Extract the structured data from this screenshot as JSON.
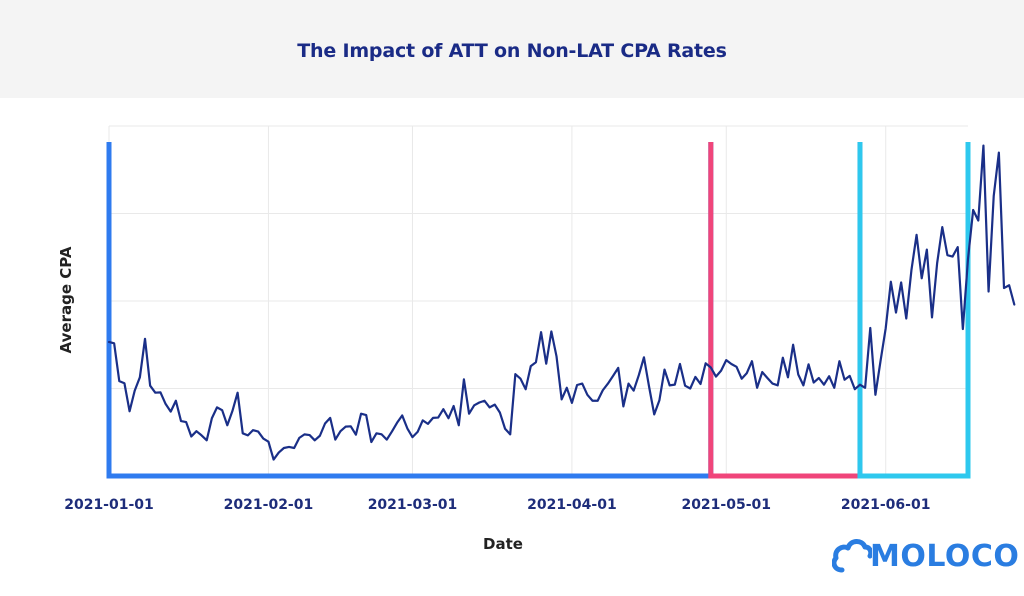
{
  "chart_data": {
    "type": "line",
    "title": "The Impact of ATT on Non-LAT CPA Rates",
    "xlabel": "Date",
    "ylabel": "Average CPA",
    "x_tick_labels": [
      "2021-01-01",
      "2021-02-01",
      "2021-03-01",
      "2021-04-01",
      "2021-05-01",
      "2021-06-01"
    ],
    "x_range_days": [
      0,
      167
    ],
    "ylim": [
      0,
      100
    ],
    "grid": true,
    "period_markers": [
      {
        "name": "before-att",
        "start_day": 0,
        "end_day": 117,
        "color": "#2f7bef"
      },
      {
        "name": "att-launch",
        "start_day": 117,
        "end_day": 146,
        "color": "#f0457a"
      },
      {
        "name": "after-att",
        "start_day": 146,
        "end_day": 167,
        "color": "#2ec8ee"
      }
    ],
    "series": [
      {
        "name": "Average CPA",
        "color": "#1a2f88",
        "values": [
          38.3,
          37.9,
          27.1,
          26.5,
          18.5,
          24.4,
          28.2,
          39.2,
          25.8,
          23.8,
          23.9,
          20.6,
          18.4,
          21.5,
          15.7,
          15.4,
          11.3,
          12.8,
          11.6,
          10.2,
          16.5,
          19.6,
          18.8,
          14.5,
          18.6,
          23.8,
          12.2,
          11.6,
          13.1,
          12.7,
          10.7,
          9.8,
          4.7,
          6.7,
          8.0,
          8.3,
          8.0,
          10.9,
          11.9,
          11.7,
          10.2,
          11.5,
          15.0,
          16.6,
          10.4,
          12.8,
          14.1,
          14.2,
          11.8,
          17.8,
          17.4,
          9.7,
          12.2,
          11.9,
          10.4,
          12.7,
          15.2,
          17.3,
          13.6,
          11.1,
          12.6,
          15.9,
          14.9,
          16.6,
          16.7,
          19.1,
          16.5,
          20.0,
          14.5,
          27.6,
          17.8,
          20.2,
          21.0,
          21.5,
          19.6,
          20.4,
          18.1,
          13.5,
          11.9,
          29.1,
          27.8,
          24.8,
          31.4,
          32.5,
          41.1,
          32.1,
          41.3,
          34.2,
          21.9,
          25.2,
          20.9,
          26.0,
          26.4,
          23.2,
          21.5,
          21.5,
          24.5,
          26.4,
          28.6,
          30.9,
          19.9,
          26.4,
          24.4,
          28.8,
          33.9,
          25.5,
          17.6,
          21.6,
          30.4,
          25.9,
          26.1,
          32.0,
          25.8,
          25.0,
          28.3,
          26.3,
          32.2,
          31.0,
          28.4,
          30.1,
          33.1,
          32.0,
          31.2,
          27.8,
          29.4,
          32.8,
          25.2,
          29.7,
          28.0,
          26.4,
          25.9,
          33.8,
          28.2,
          37.5,
          29.0,
          25.9,
          31.9,
          26.7,
          28.0,
          26.1,
          28.5,
          25.2,
          32.8,
          27.5,
          28.6,
          24.8,
          26.1,
          25.2,
          42.3,
          23.2,
          32.9,
          42.2,
          55.5,
          46.7,
          55.3,
          45.0,
          58.8,
          68.9,
          56.5,
          64.7,
          45.3,
          60.8,
          71.1,
          63.1,
          62.7,
          65.4,
          42.0,
          62.0,
          76.0,
          73.0,
          94.4,
          52.7,
          80.0,
          92.4,
          53.7,
          54.5,
          49.0
        ]
      }
    ]
  },
  "logo": {
    "text": "MOLOCO"
  }
}
